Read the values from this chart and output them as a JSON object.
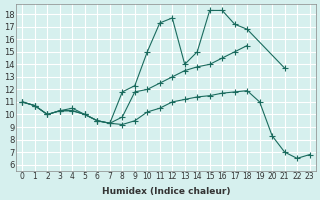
{
  "xlabel": "Humidex (Indice chaleur)",
  "xlim": [
    -0.5,
    23.5
  ],
  "ylim": [
    5.5,
    18.8
  ],
  "xticks": [
    0,
    1,
    2,
    3,
    4,
    5,
    6,
    7,
    8,
    9,
    10,
    11,
    12,
    13,
    14,
    15,
    16,
    17,
    18,
    19,
    20,
    21,
    22,
    23
  ],
  "yticks": [
    6,
    7,
    8,
    9,
    10,
    11,
    12,
    13,
    14,
    15,
    16,
    17,
    18
  ],
  "line_color": "#1a6b5e",
  "bg_color": "#d6f0ee",
  "grid_color": "#ffffff",
  "line_a_x": [
    0,
    1,
    2,
    3,
    4,
    5,
    6,
    7,
    8,
    9,
    10,
    11,
    12,
    13,
    14,
    15,
    16,
    17,
    18,
    21
  ],
  "line_a_y": [
    11,
    10.7,
    10,
    10.3,
    10.3,
    10,
    9.5,
    9.3,
    11.8,
    12.3,
    15.0,
    17.3,
    17.7,
    14.0,
    15.0,
    18.3,
    18.3,
    17.2,
    16.8,
    13.7
  ],
  "line_b_x": [
    0,
    1,
    2,
    3,
    4,
    5,
    6,
    7,
    8,
    9,
    10,
    11,
    12,
    13,
    14,
    15,
    16,
    17,
    18
  ],
  "line_b_y": [
    11,
    10.7,
    10,
    10.3,
    10.5,
    10,
    9.5,
    9.3,
    9.8,
    11.8,
    12.0,
    12.5,
    13.0,
    13.5,
    13.8,
    14.0,
    14.5,
    15.0,
    15.5
  ],
  "line_c_x": [
    0,
    1,
    2,
    3,
    4,
    5,
    6,
    7,
    8,
    9,
    10,
    11,
    12,
    13,
    14,
    15,
    16,
    17,
    18,
    19,
    20,
    21,
    22,
    23
  ],
  "line_c_y": [
    11,
    10.7,
    10,
    10.3,
    10.3,
    10,
    9.5,
    9.3,
    9.2,
    9.5,
    10.2,
    10.5,
    11.0,
    11.2,
    11.4,
    11.5,
    11.7,
    11.8,
    11.9,
    11.0,
    8.3,
    7.0,
    6.5,
    6.8
  ]
}
